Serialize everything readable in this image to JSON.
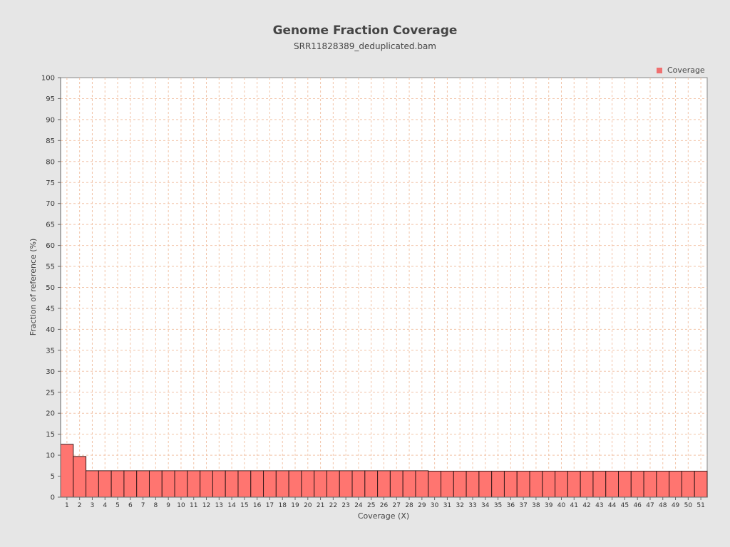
{
  "colors": {
    "bar_fill": "#ff7570",
    "bar_stroke": "#3a1a1a",
    "legend_marker": "#f07070",
    "grid": "#f2c4a8",
    "background": "#e6e6e6",
    "plot_background": "#ffffff"
  },
  "chart_data": {
    "type": "bar",
    "title": "Genome Fraction Coverage",
    "subtitle": "SRR11828389_deduplicated.bam",
    "xlabel": "Coverage (X)",
    "ylabel": "Fraction of reference (%)",
    "ylim": [
      0,
      100
    ],
    "ytick_step": 5,
    "grid": true,
    "legend_position": "top-right",
    "categories": [
      "1",
      "2",
      "3",
      "4",
      "5",
      "6",
      "7",
      "8",
      "9",
      "10",
      "11",
      "12",
      "13",
      "14",
      "15",
      "16",
      "17",
      "18",
      "19",
      "20",
      "21",
      "22",
      "23",
      "24",
      "25",
      "26",
      "27",
      "28",
      "29",
      "30",
      "31",
      "32",
      "33",
      "34",
      "35",
      "36",
      "37",
      "38",
      "39",
      "40",
      "41",
      "42",
      "43",
      "44",
      "45",
      "46",
      "47",
      "48",
      "49",
      "50",
      "51"
    ],
    "series": [
      {
        "name": "Coverage",
        "values": [
          12.6,
          9.7,
          6.3,
          6.3,
          6.3,
          6.3,
          6.3,
          6.3,
          6.3,
          6.3,
          6.3,
          6.3,
          6.3,
          6.3,
          6.3,
          6.3,
          6.3,
          6.3,
          6.3,
          6.3,
          6.3,
          6.3,
          6.3,
          6.3,
          6.3,
          6.3,
          6.3,
          6.3,
          6.3,
          6.2,
          6.2,
          6.2,
          6.2,
          6.2,
          6.2,
          6.2,
          6.2,
          6.2,
          6.2,
          6.2,
          6.2,
          6.2,
          6.2,
          6.2,
          6.2,
          6.2,
          6.2,
          6.2,
          6.2,
          6.2,
          6.2
        ]
      }
    ]
  }
}
